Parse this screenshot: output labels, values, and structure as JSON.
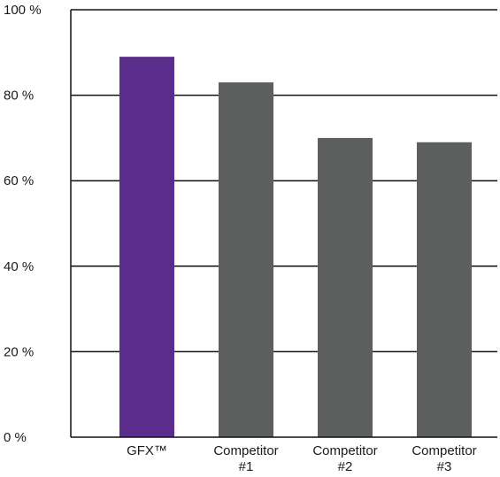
{
  "chart_data": {
    "type": "bar",
    "categories": [
      [
        "GFX™"
      ],
      [
        "Competitor",
        "#1"
      ],
      [
        "Competitor",
        "#2"
      ],
      [
        "Competitor",
        "#3"
      ]
    ],
    "values": [
      89,
      83,
      70,
      69
    ],
    "colors": [
      "#5a2d8c",
      "#5d5f5f",
      "#5d5f5f",
      "#5d5f5f"
    ],
    "ylim": [
      0,
      100
    ],
    "yticks": [
      0,
      20,
      40,
      60,
      80,
      100
    ],
    "ytick_labels": [
      "0 %",
      "20 %",
      "40 %",
      "60 %",
      "80 %",
      "100 %"
    ],
    "grid": true,
    "title": "",
    "xlabel": "",
    "ylabel": ""
  }
}
